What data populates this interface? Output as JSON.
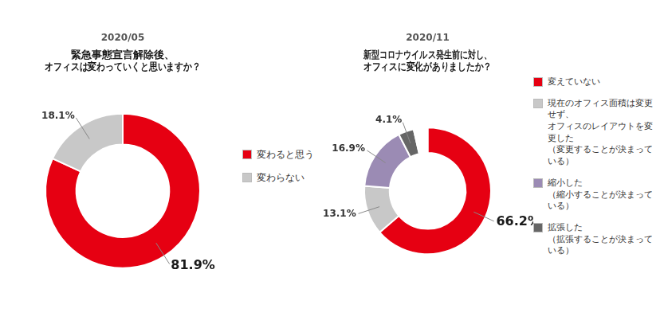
{
  "chart_data": [
    {
      "type": "doughnut",
      "subtitle": "2020/05",
      "title": "緊急事態宣言解除後、\nオフィスは変わっていくと思いますか？",
      "categories": [
        "変わると思う",
        "変わらない"
      ],
      "values": [
        81.9,
        18.1
      ],
      "value_labels": [
        "81.9%",
        "18.1%"
      ],
      "colors": [
        "#e60012",
        "#c8c8c8"
      ],
      "data_labels": true,
      "legend": "right"
    },
    {
      "type": "doughnut",
      "subtitle": "2020/11",
      "title": "新型コロナウイルス発生前に対し、\nオフィスに変化がありましたか？",
      "categories": [
        "変えていない",
        "現在のオフィス面積は変更せず、\nオフィスのレイアウトを変更した\n（変更することが決まっている）",
        "縮小した\n（縮小することが決まっている）",
        "拡張した\n（拡張することが決まっている）",
        null
      ],
      "values": [
        66.2,
        13.1,
        16.9,
        4.1,
        3.7
      ],
      "value_labels": [
        "66.2%",
        "13.1%",
        "16.9%",
        "4.1%",
        null
      ],
      "colors": [
        "#e60012",
        "#c8c8c8",
        "#9b8bb4",
        "#666666",
        "#ffffff"
      ],
      "data_labels": true,
      "legend": "right"
    }
  ]
}
